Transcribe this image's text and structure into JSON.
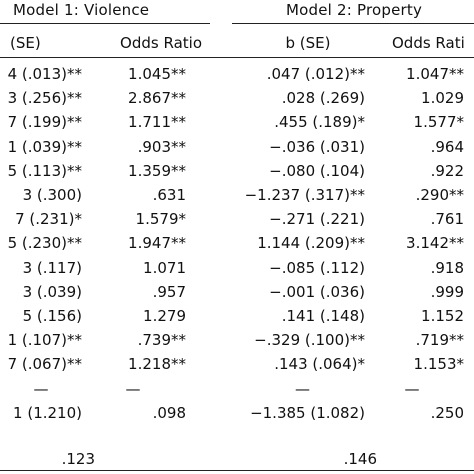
{
  "table": {
    "model1_header": "Model 1: Violence",
    "model2_header": "Model 2: Property",
    "columns": {
      "m1_b": "(SE)",
      "m1_or": "Odds Ratio",
      "m2_b": "b (SE)",
      "m2_or": "Odds Rati"
    },
    "rows": [
      {
        "m1_b": "4 (.013)**",
        "m1_or": "1.045**",
        "m2_b": ".047 (.012)**",
        "m2_or": "1.047**"
      },
      {
        "m1_b": "3 (.256)**",
        "m1_or": "2.867**",
        "m2_b": ".028 (.269)",
        "m2_or": "1.029"
      },
      {
        "m1_b": "7 (.199)**",
        "m1_or": "1.711**",
        "m2_b": ".455 (.189)*",
        "m2_or": "1.577*"
      },
      {
        "m1_b": "1 (.039)**",
        "m1_or": ".903**",
        "m2_b": "−.036 (.031)",
        "m2_or": ".964"
      },
      {
        "m1_b": "5 (.113)**",
        "m1_or": "1.359**",
        "m2_b": "−.080 (.104)",
        "m2_or": ".922"
      },
      {
        "m1_b": "3 (.300)",
        "m1_or": ".631",
        "m2_b": "−1.237 (.317)**",
        "m2_or": ".290**"
      },
      {
        "m1_b": "7 (.231)*",
        "m1_or": "1.579*",
        "m2_b": "−.271 (.221)",
        "m2_or": ".761"
      },
      {
        "m1_b": "5 (.230)**",
        "m1_or": "1.947**",
        "m2_b": "1.144 (.209)**",
        "m2_or": "3.142**"
      },
      {
        "m1_b": "3 (.117)",
        "m1_or": "1.071",
        "m2_b": "−.085 (.112)",
        "m2_or": ".918"
      },
      {
        "m1_b": "3 (.039)",
        "m1_or": ".957",
        "m2_b": "−.001 (.036)",
        "m2_or": ".999"
      },
      {
        "m1_b": "5 (.156)",
        "m1_or": "1.279",
        "m2_b": ".141 (.148)",
        "m2_or": "1.152"
      },
      {
        "m1_b": "1 (.107)**",
        "m1_or": ".739**",
        "m2_b": "−.329 (.100)**",
        "m2_or": ".719**"
      },
      {
        "m1_b": "7 (.067)**",
        "m1_or": "1.218**",
        "m2_b": ".143 (.064)*",
        "m2_or": "1.153*"
      },
      {
        "m1_b": "—",
        "m1_or": "—",
        "m2_b": "—",
        "m2_or": "—"
      },
      {
        "m1_b": "1 (1.210)",
        "m1_or": ".098",
        "m2_b": "−1.385 (1.082)",
        "m2_or": ".250"
      }
    ],
    "r2": {
      "m1": ".123",
      "m2": ".146"
    },
    "footnote_mark": "."
  }
}
